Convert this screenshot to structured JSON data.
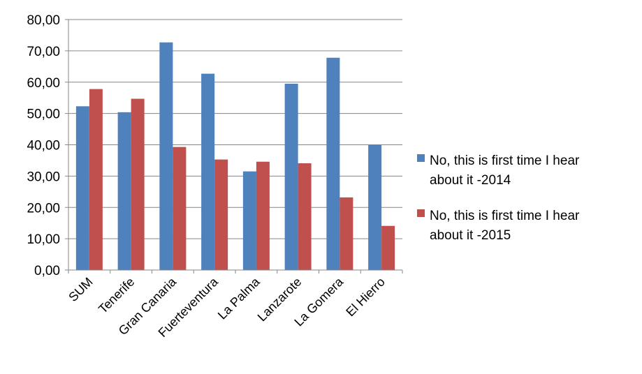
{
  "chart_data": {
    "type": "bar",
    "categories": [
      "SUM",
      "Tenerife",
      "Gran Canaria",
      "Fuerteventura",
      "La Palma",
      "Lanzarote",
      "La Gomera",
      "El Hierro"
    ],
    "series": [
      {
        "name": "No, this is first time I hear about it -2014",
        "legend_lines": [
          "No, this is first time I hear",
          "about it -2014"
        ],
        "color": "#4F81BD",
        "values": [
          52.3,
          50.4,
          72.7,
          62.7,
          31.5,
          59.5,
          67.8,
          40.0
        ]
      },
      {
        "name": "No, this is first time I hear about it -2015",
        "legend_lines": [
          "No, this is first time I hear",
          "about it -2015"
        ],
        "color": "#C0504D",
        "values": [
          57.8,
          54.7,
          39.3,
          35.3,
          34.6,
          34.1,
          23.2,
          14.1
        ]
      }
    ],
    "yticks": [
      "0,00",
      "10,00",
      "20,00",
      "30,00",
      "40,00",
      "50,00",
      "60,00",
      "70,00",
      "80,00"
    ],
    "ylim": [
      0,
      80
    ],
    "grid": true,
    "legend_position": "right",
    "title": "",
    "xlabel": "",
    "ylabel": ""
  }
}
